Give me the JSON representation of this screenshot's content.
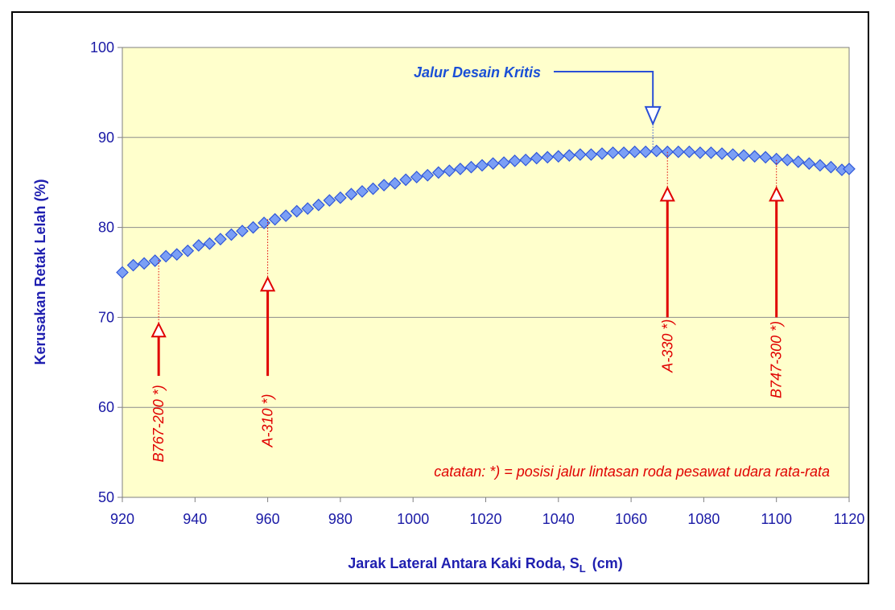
{
  "chart_data": {
    "type": "scatter",
    "xlabel": "Jarak Lateral Antara Kaki Roda, S",
    "xlabel_subscript": "L",
    "xlabel_unit": "(cm)",
    "ylabel": "Kerusakan Retak Lelah (%)",
    "xlim": [
      920,
      1120
    ],
    "ylim": [
      50,
      100
    ],
    "x_ticks": [
      "920",
      "940",
      "960",
      "980",
      "1000",
      "1020",
      "1040",
      "1060",
      "1080",
      "1100",
      "1120"
    ],
    "y_ticks": [
      "50",
      "60",
      "70",
      "80",
      "90",
      "100"
    ],
    "grid": "horizontal",
    "plot_background": "#ffffcc",
    "marker_color": "#7b9ff5",
    "marker_edge_color": "#2f57d9",
    "series": [
      {
        "x": [
          920,
          923,
          926,
          929,
          932,
          935,
          938,
          941,
          944,
          947,
          950,
          953,
          956,
          959,
          962,
          965,
          968,
          971,
          974,
          977,
          980,
          983,
          986,
          989,
          992,
          995,
          998,
          1001,
          1004,
          1007,
          1010,
          1013,
          1016,
          1019,
          1022,
          1025,
          1028,
          1031,
          1034,
          1037,
          1040,
          1043,
          1046,
          1049,
          1052,
          1055,
          1058,
          1061,
          1064,
          1067,
          1070,
          1073,
          1076,
          1079,
          1082,
          1085,
          1088,
          1091,
          1094,
          1097,
          1100,
          1103,
          1106,
          1109,
          1112,
          1115,
          1118,
          1120
        ],
        "y": [
          75.0,
          75.8,
          76.0,
          76.3,
          76.8,
          77.0,
          77.4,
          78.0,
          78.2,
          78.7,
          79.2,
          79.6,
          80.0,
          80.5,
          80.9,
          81.3,
          81.8,
          82.1,
          82.5,
          83.0,
          83.3,
          83.7,
          84.0,
          84.3,
          84.7,
          84.9,
          85.3,
          85.6,
          85.8,
          86.1,
          86.3,
          86.5,
          86.7,
          86.9,
          87.1,
          87.2,
          87.4,
          87.5,
          87.7,
          87.8,
          87.9,
          88.0,
          88.1,
          88.1,
          88.2,
          88.3,
          88.3,
          88.4,
          88.4,
          88.5,
          88.4,
          88.4,
          88.4,
          88.3,
          88.3,
          88.2,
          88.1,
          88.0,
          87.9,
          87.8,
          87.6,
          87.5,
          87.3,
          87.1,
          86.9,
          86.7,
          86.4,
          86.5
        ]
      }
    ],
    "annotations": {
      "note": "catatan: *) = posisi jalur lintasan roda pesawat udara rata-rata",
      "critical_label": "Jalur Desain Kritis",
      "critical_x": 1066,
      "critical_y": 88.7,
      "aircraft": [
        {
          "label": "B767-200 *)",
          "x": 930,
          "y": 76.4
        },
        {
          "label": "A-310 *)",
          "x": 960,
          "y": 80.9
        },
        {
          "label": "A-330 *)",
          "x": 1070,
          "y": 88.4
        },
        {
          "label": "B747-300 *)",
          "x": 1100,
          "y": 87.5
        }
      ]
    }
  }
}
